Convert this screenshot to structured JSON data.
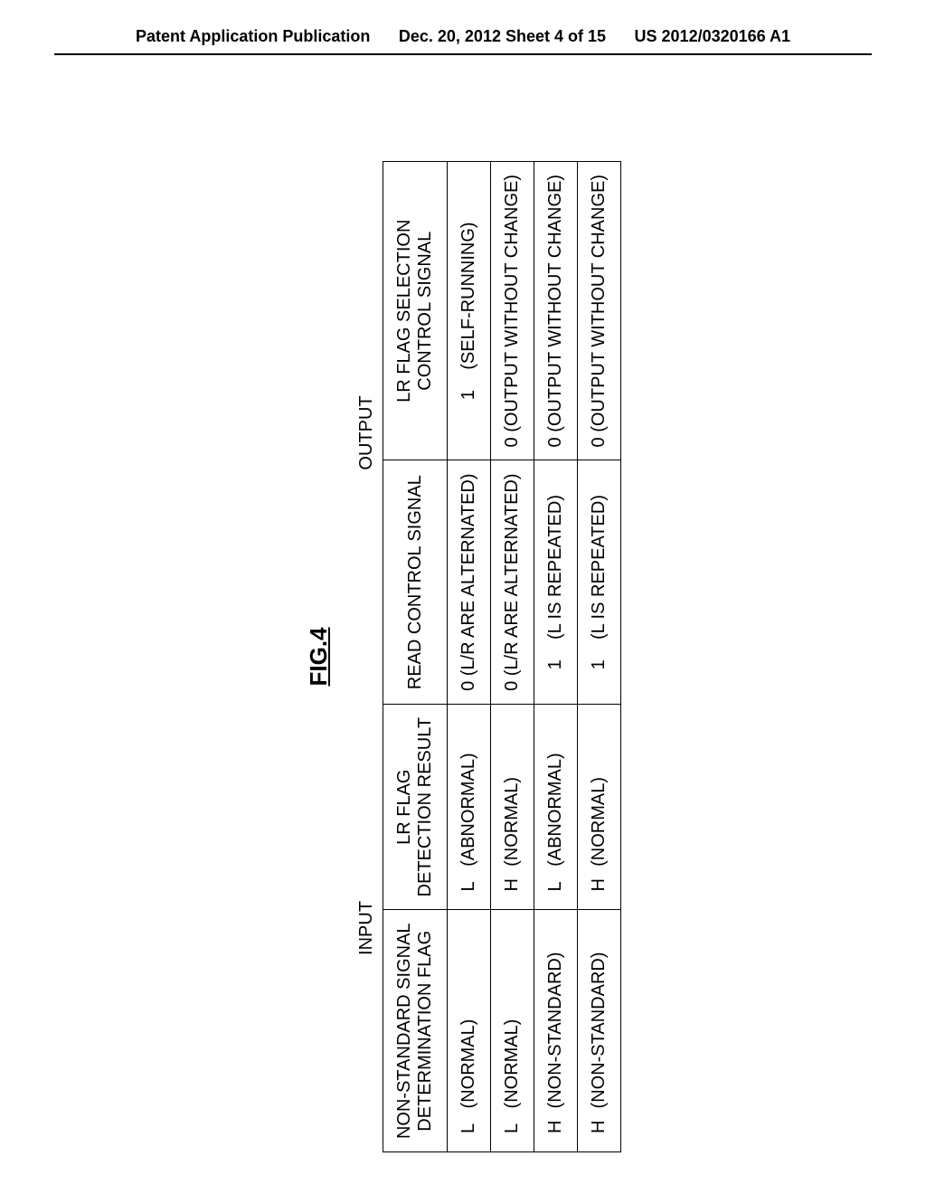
{
  "header": {
    "left": "Patent Application Publication",
    "center": "Dec. 20, 2012  Sheet 4 of 15",
    "right": "US 2012/0320166 A1"
  },
  "figure_label": "FIG.4",
  "table": {
    "group_input": "INPUT",
    "group_output": "OUTPUT",
    "col1_line1": "NON-STANDARD SIGNAL",
    "col1_line2": "DETERMINATION FLAG",
    "col2_line1": "LR FLAG",
    "col2_line2": "DETECTION RESULT",
    "col3": "READ CONTROL SIGNAL",
    "col4_line1": "LR FLAG SELECTION",
    "col4_line2": "CONTROL SIGNAL",
    "rows": [
      {
        "c1_letter": "L",
        "c1_paren": "(NORMAL)",
        "c2_letter": "L",
        "c2_paren": "(ABNORMAL)",
        "c3": "0 (L/R ARE ALTERNATED)",
        "c4_num": "1",
        "c4_paren": "(SELF-RUNNING)"
      },
      {
        "c1_letter": "L",
        "c1_paren": "(NORMAL)",
        "c2_letter": "H",
        "c2_paren": "(NORMAL)",
        "c3": "0 (L/R ARE ALTERNATED)",
        "c4_num": "0",
        "c4_paren": "(OUTPUT WITHOUT CHANGE)"
      },
      {
        "c1_letter": "H",
        "c1_paren": "(NON-STANDARD)",
        "c2_letter": "L",
        "c2_paren": "(ABNORMAL)",
        "c3_num": "1",
        "c3_paren": "(L IS REPEATED)",
        "c4_num": "0",
        "c4_paren": "(OUTPUT WITHOUT CHANGE)"
      },
      {
        "c1_letter": "H",
        "c1_paren": "(NON-STANDARD)",
        "c2_letter": "H",
        "c2_paren": "(NORMAL)",
        "c3_num": "1",
        "c3_paren": "(L IS REPEATED)",
        "c4_num": "0",
        "c4_paren": "(OUTPUT WITHOUT CHANGE)"
      }
    ]
  }
}
